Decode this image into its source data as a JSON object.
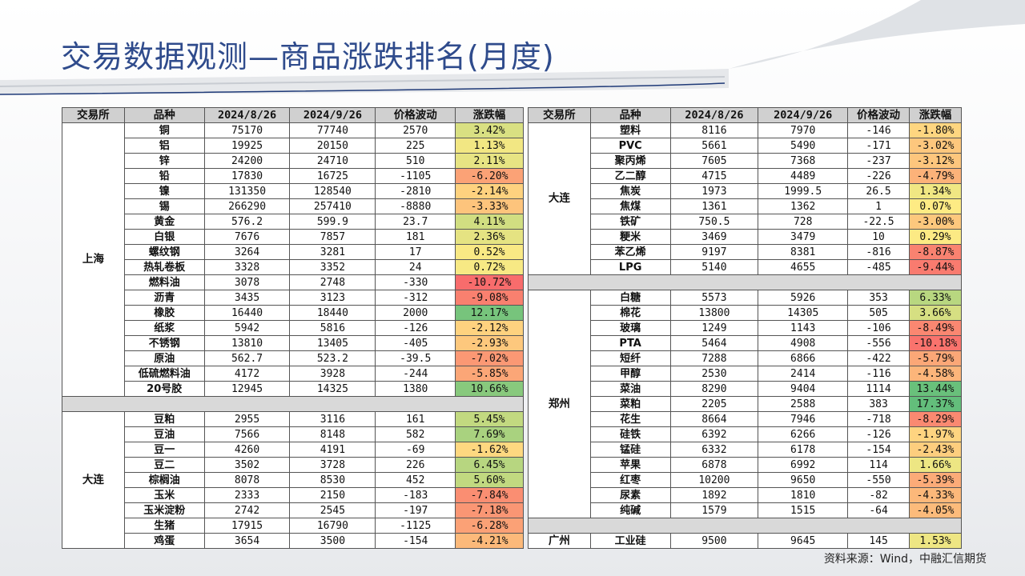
{
  "title": "交易数据观测—商品涨跌排名(月度)",
  "source": "资料来源：Wind，中融汇信期货",
  "headers": [
    "交易所",
    "品种",
    "2024/8/26",
    "2024/9/26",
    "价格波动",
    "涨跌幅"
  ],
  "colors": {
    "title": "#2f4b8c",
    "header_bg": "#d0d0d0",
    "separator": "#d9d9d9"
  },
  "left_table": {
    "groups": [
      {
        "exchange": "上海",
        "rows": [
          [
            "铜",
            "75170",
            "77740",
            "2570",
            "3.42%"
          ],
          [
            "铝",
            "19925",
            "20150",
            "225",
            "1.13%"
          ],
          [
            "锌",
            "24200",
            "24710",
            "510",
            "2.11%"
          ],
          [
            "铅",
            "17830",
            "16725",
            "-1105",
            "-6.20%"
          ],
          [
            "镍",
            "131350",
            "128540",
            "-2810",
            "-2.14%"
          ],
          [
            "锡",
            "266290",
            "257410",
            "-8880",
            "-3.33%"
          ],
          [
            "黄金",
            "576.2",
            "599.9",
            "23.7",
            "4.11%"
          ],
          [
            "白银",
            "7676",
            "7857",
            "181",
            "2.36%"
          ],
          [
            "螺纹钢",
            "3264",
            "3281",
            "17",
            "0.52%"
          ],
          [
            "热轧卷板",
            "3328",
            "3352",
            "24",
            "0.72%"
          ],
          [
            "燃料油",
            "3078",
            "2748",
            "-330",
            "-10.72%"
          ],
          [
            "沥青",
            "3435",
            "3123",
            "-312",
            "-9.08%"
          ],
          [
            "橡胶",
            "16440",
            "18440",
            "2000",
            "12.17%"
          ],
          [
            "纸浆",
            "5942",
            "5816",
            "-126",
            "-2.12%"
          ],
          [
            "不锈钢",
            "13810",
            "13405",
            "-405",
            "-2.93%"
          ],
          [
            "原油",
            "562.7",
            "523.2",
            "-39.5",
            "-7.02%"
          ],
          [
            "低硫燃料油",
            "4172",
            "3928",
            "-244",
            "-5.85%"
          ],
          [
            "20号胶",
            "12945",
            "14325",
            "1380",
            "10.66%"
          ]
        ]
      },
      {
        "exchange": "大连",
        "rows": [
          [
            "豆粕",
            "2955",
            "3116",
            "161",
            "5.45%"
          ],
          [
            "豆油",
            "7566",
            "8148",
            "582",
            "7.69%"
          ],
          [
            "豆一",
            "4260",
            "4191",
            "-69",
            "-1.62%"
          ],
          [
            "豆二",
            "3502",
            "3728",
            "226",
            "6.45%"
          ],
          [
            "棕榈油",
            "8078",
            "8530",
            "452",
            "5.60%"
          ],
          [
            "玉米",
            "2333",
            "2150",
            "-183",
            "-7.84%"
          ],
          [
            "玉米淀粉",
            "2742",
            "2545",
            "-197",
            "-7.18%"
          ],
          [
            "生猪",
            "17915",
            "16790",
            "-1125",
            "-6.28%"
          ],
          [
            "鸡蛋",
            "3654",
            "3500",
            "-154",
            "-4.21%"
          ]
        ]
      }
    ]
  },
  "right_table": {
    "groups": [
      {
        "exchange": "大连",
        "rows": [
          [
            "塑料",
            "8116",
            "7970",
            "-146",
            "-1.80%"
          ],
          [
            "PVC",
            "5661",
            "5490",
            "-171",
            "-3.02%"
          ],
          [
            "聚丙烯",
            "7605",
            "7368",
            "-237",
            "-3.12%"
          ],
          [
            "乙二醇",
            "4715",
            "4489",
            "-226",
            "-4.79%"
          ],
          [
            "焦炭",
            "1973",
            "1999.5",
            "26.5",
            "1.34%"
          ],
          [
            "焦煤",
            "1361",
            "1362",
            "1",
            "0.07%"
          ],
          [
            "铁矿",
            "750.5",
            "728",
            "-22.5",
            "-3.00%"
          ],
          [
            "粳米",
            "3469",
            "3479",
            "10",
            "0.29%"
          ],
          [
            "苯乙烯",
            "9197",
            "8381",
            "-816",
            "-8.87%"
          ],
          [
            "LPG",
            "5140",
            "4655",
            "-485",
            "-9.44%"
          ]
        ]
      },
      {
        "exchange": "郑州",
        "rows": [
          [
            "白糖",
            "5573",
            "5926",
            "353",
            "6.33%"
          ],
          [
            "棉花",
            "13800",
            "14305",
            "505",
            "3.66%"
          ],
          [
            "玻璃",
            "1249",
            "1143",
            "-106",
            "-8.49%"
          ],
          [
            "PTA",
            "5464",
            "4908",
            "-556",
            "-10.18%"
          ],
          [
            "短纤",
            "7288",
            "6866",
            "-422",
            "-5.79%"
          ],
          [
            "甲醇",
            "2530",
            "2414",
            "-116",
            "-4.58%"
          ],
          [
            "菜油",
            "8290",
            "9404",
            "1114",
            "13.44%"
          ],
          [
            "菜粕",
            "2205",
            "2588",
            "383",
            "17.37%"
          ],
          [
            "花生",
            "8664",
            "7946",
            "-718",
            "-8.29%"
          ],
          [
            "硅铁",
            "6392",
            "6266",
            "-126",
            "-1.97%"
          ],
          [
            "锰硅",
            "6332",
            "6178",
            "-154",
            "-2.43%"
          ],
          [
            "苹果",
            "6878",
            "6992",
            "114",
            "1.66%"
          ],
          [
            "红枣",
            "10200",
            "9650",
            "-550",
            "-5.39%"
          ],
          [
            "尿素",
            "1892",
            "1810",
            "-82",
            "-4.33%"
          ],
          [
            "纯碱",
            "1579",
            "1515",
            "-64",
            "-4.05%"
          ]
        ]
      },
      {
        "exchange": "广州",
        "rows": [
          [
            "工业硅",
            "9500",
            "9645",
            "145",
            "1.53%"
          ]
        ]
      }
    ]
  }
}
